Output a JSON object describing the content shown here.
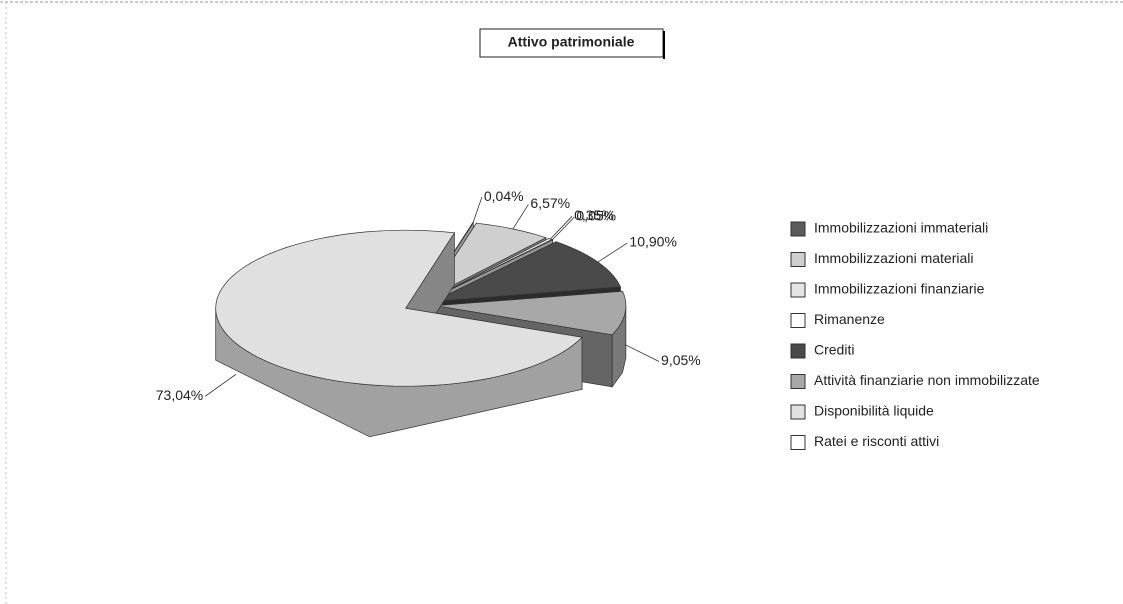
{
  "chart_data": {
    "type": "pie3d",
    "title": "Attivo patrimoniale",
    "categories": [
      "Immobilizzazioni immateriali",
      "Immobilizzazioni materiali",
      "Immobilizzazioni finanziarie",
      "Rimanenze",
      "Crediti",
      "Attività finanziarie non immobilizzate",
      "Disponibilità liquide",
      "Ratei e risconti attivi"
    ],
    "values": [
      0,
      6.57,
      0.35,
      0.05,
      10.9,
      9.05,
      73.04,
      0.04
    ],
    "value_labels": [
      null,
      "6,57%",
      "0,35%",
      "0,05%",
      "10,90%",
      "9,05%",
      "73,04%",
      "0,04%"
    ],
    "colors": [
      "#5a5a5a",
      "#cfcfcf",
      "#e4e4e4",
      "#ffffff",
      "#4a4a4a",
      "#a8a8a8",
      "#e0e0e0",
      "#ffffff"
    ],
    "legend": "right"
  }
}
